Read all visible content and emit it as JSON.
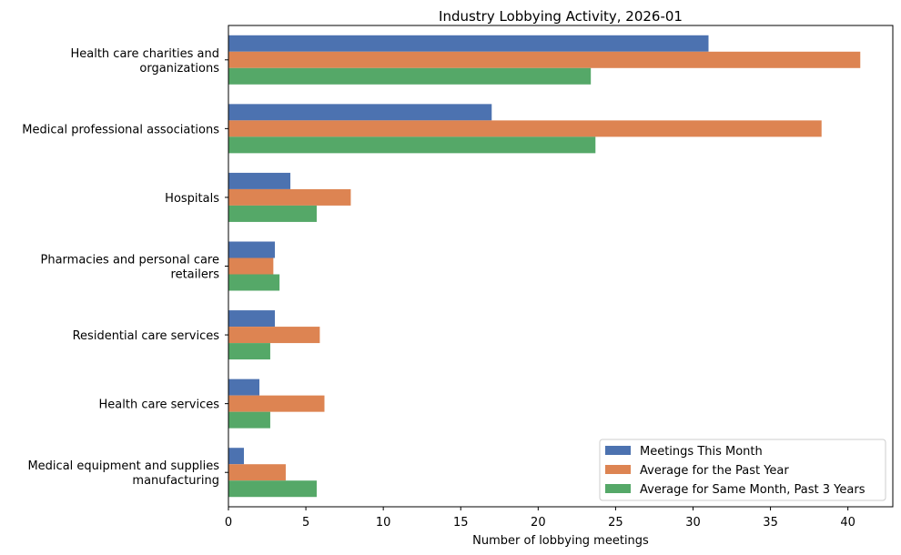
{
  "chart_data": {
    "type": "bar",
    "orientation": "horizontal",
    "title": "Industry Lobbying Activity, 2026-01",
    "xlabel": "Number of lobbying meetings",
    "ylabel": "",
    "xlim": [
      0,
      42.9
    ],
    "xticks": [
      0,
      5,
      10,
      15,
      20,
      25,
      30,
      35,
      40
    ],
    "grid": false,
    "legend_position": "lower-right",
    "categories": [
      [
        "Health care charities and",
        "organizations"
      ],
      [
        "Medical professional associations"
      ],
      [
        "Hospitals"
      ],
      [
        "Pharmacies and personal care",
        "retailers"
      ],
      [
        "Residential care services"
      ],
      [
        "Health care services"
      ],
      [
        "Medical equipment and supplies",
        "manufacturing"
      ]
    ],
    "series": [
      {
        "name": "Meetings This Month",
        "color": "#4c72b0",
        "values": [
          31,
          17,
          4,
          3,
          3,
          2,
          1
        ]
      },
      {
        "name": "Average for the Past Year",
        "color": "#dd8452",
        "values": [
          40.8,
          38.3,
          7.9,
          2.9,
          5.9,
          6.2,
          3.7
        ]
      },
      {
        "name": "Average for Same Month, Past 3 Years",
        "color": "#55a868",
        "values": [
          23.4,
          23.7,
          5.7,
          3.3,
          2.7,
          2.7,
          5.7
        ]
      }
    ]
  }
}
